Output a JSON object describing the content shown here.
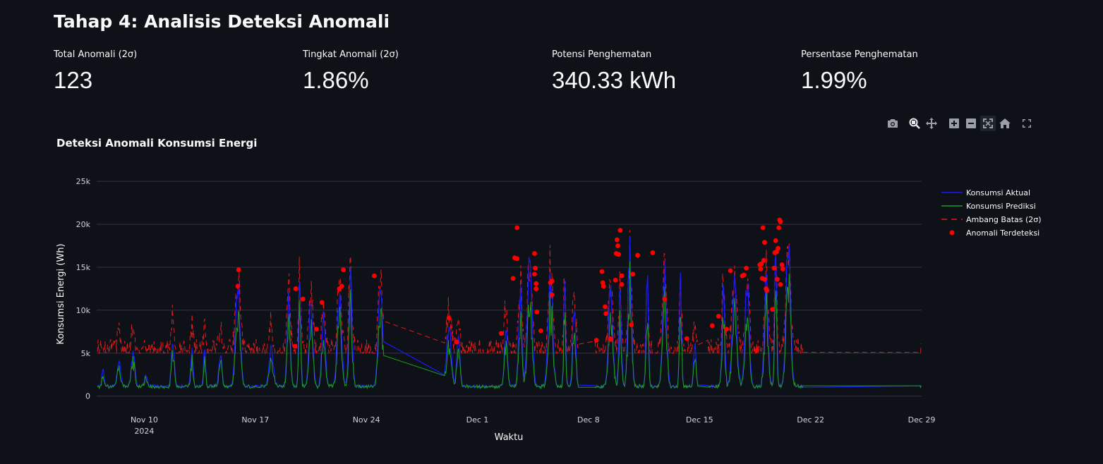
{
  "page": {
    "title": "Tahap 4: Analisis Deteksi Anomali"
  },
  "metrics": [
    {
      "label": "Total Anomali (2σ)",
      "value": "123"
    },
    {
      "label": "Tingkat Anomali (2σ)",
      "value": "1.86%"
    },
    {
      "label": "Potensi Penghematan",
      "value": "340.33 kWh"
    },
    {
      "label": "Persentase Penghematan",
      "value": "1.99%"
    }
  ],
  "modebar": {
    "buttons": [
      {
        "name": "camera-icon",
        "title": "Download plot as a png"
      },
      {
        "name": "zoom-icon",
        "title": "Zoom"
      },
      {
        "name": "pan-icon",
        "title": "Pan"
      },
      {
        "name": "zoom-in-icon",
        "title": "Zoom in"
      },
      {
        "name": "zoom-out-icon",
        "title": "Zoom out"
      },
      {
        "name": "autoscale-icon",
        "title": "Autoscale"
      },
      {
        "name": "home-icon",
        "title": "Reset axes"
      },
      {
        "name": "fullscreen-icon",
        "title": "Fullscreen"
      }
    ]
  },
  "colors": {
    "background": "#0e1117",
    "actual": "#1a1aff",
    "predicted": "#1f9c1f",
    "threshold": "#e31a1a",
    "anomaly": "#ff0000",
    "grid": "#31353f"
  },
  "chart_data": {
    "type": "line",
    "title": "Deteksi Anomali Konsumsi Energi",
    "xlabel": "Waktu",
    "ylabel": "Konsumsi Energi (Wh)",
    "ylim": [
      -1500,
      26000
    ],
    "y_ticks": [
      {
        "value": 0,
        "label": "0"
      },
      {
        "value": 5000,
        "label": "5k"
      },
      {
        "value": 10000,
        "label": "10k"
      },
      {
        "value": 15000,
        "label": "15k"
      },
      {
        "value": 20000,
        "label": "20k"
      },
      {
        "value": 25000,
        "label": "25k"
      }
    ],
    "x_ticks": [
      {
        "day": 9.5,
        "label": "Nov 10",
        "sublabel": "2024"
      },
      {
        "day": 16.5,
        "label": "Nov 17",
        "sublabel": ""
      },
      {
        "day": 23.5,
        "label": "Nov 24",
        "sublabel": ""
      },
      {
        "day": 30.5,
        "label": "Dec 1",
        "sublabel": ""
      },
      {
        "day": 37.5,
        "label": "Dec 8",
        "sublabel": ""
      },
      {
        "day": 44.5,
        "label": "Dec 15",
        "sublabel": ""
      },
      {
        "day": 51.5,
        "label": "Dec 22",
        "sublabel": ""
      },
      {
        "day": 58.5,
        "label": "Dec 29",
        "sublabel": ""
      }
    ],
    "xlim": [
      6.5,
      58.5
    ],
    "grid": true,
    "legend_position": "top-right",
    "series": [
      {
        "name": "Konsumsi Aktual",
        "style": "solid",
        "peaks": [
          {
            "day": 6.9,
            "value": 3200
          },
          {
            "day": 7.9,
            "value": 4500
          },
          {
            "day": 8.8,
            "value": 5500
          },
          {
            "day": 9.6,
            "value": 2500
          },
          {
            "day": 11.3,
            "value": 6500
          },
          {
            "day": 12.5,
            "value": 5500
          },
          {
            "day": 13.3,
            "value": 5800
          },
          {
            "day": 14.3,
            "value": 5200
          },
          {
            "day": 15.4,
            "value": 14500
          },
          {
            "day": 17.5,
            "value": 6000
          },
          {
            "day": 18.6,
            "value": 12500
          },
          {
            "day": 19.3,
            "value": 14500
          },
          {
            "day": 20.0,
            "value": 12000
          },
          {
            "day": 20.8,
            "value": 10500
          },
          {
            "day": 21.8,
            "value": 12500
          },
          {
            "day": 22.5,
            "value": 15000
          },
          {
            "day": 24.4,
            "value": 14000
          },
          {
            "day": 28.7,
            "value": 9000
          },
          {
            "day": 29.3,
            "value": 8500
          },
          {
            "day": 32.3,
            "value": 9000
          },
          {
            "day": 33.2,
            "value": 13500
          },
          {
            "day": 33.8,
            "value": 19500
          },
          {
            "day": 35.1,
            "value": 16000
          },
          {
            "day": 36.0,
            "value": 13500
          },
          {
            "day": 36.6,
            "value": 11000
          },
          {
            "day": 38.9,
            "value": 14500
          },
          {
            "day": 39.5,
            "value": 13500
          },
          {
            "day": 40.1,
            "value": 19500
          },
          {
            "day": 41.2,
            "value": 16500
          },
          {
            "day": 42.3,
            "value": 16500
          },
          {
            "day": 43.3,
            "value": 15000
          },
          {
            "day": 44.2,
            "value": 7000
          },
          {
            "day": 46.0,
            "value": 13000
          },
          {
            "day": 46.7,
            "value": 14500
          },
          {
            "day": 47.5,
            "value": 14000
          },
          {
            "day": 48.7,
            "value": 15000
          },
          {
            "day": 49.3,
            "value": 19500
          },
          {
            "day": 50.1,
            "value": 20500
          }
        ]
      },
      {
        "name": "Konsumsi Prediksi",
        "style": "solid"
      },
      {
        "name": "Ambang Batas (2σ)",
        "style": "dash"
      },
      {
        "name": "Anomali Terdeteksi",
        "style": "markers",
        "points": [
          {
            "x": 15.45,
            "y": 14700
          },
          {
            "x": 15.4,
            "y": 12800
          },
          {
            "x": 19.05,
            "y": 12500
          },
          {
            "x": 19.0,
            "y": 5800
          },
          {
            "x": 19.5,
            "y": 11300
          },
          {
            "x": 20.35,
            "y": 7800
          },
          {
            "x": 20.7,
            "y": 10900
          },
          {
            "x": 21.8,
            "y": 12500
          },
          {
            "x": 21.95,
            "y": 12800
          },
          {
            "x": 22.05,
            "y": 14700
          },
          {
            "x": 24.0,
            "y": 14000
          },
          {
            "x": 28.7,
            "y": 9100
          },
          {
            "x": 29.2,
            "y": 6300
          },
          {
            "x": 32.0,
            "y": 7300
          },
          {
            "x": 32.75,
            "y": 13700
          },
          {
            "x": 32.85,
            "y": 16100
          },
          {
            "x": 33.0,
            "y": 16000
          },
          {
            "x": 33.0,
            "y": 19600
          },
          {
            "x": 34.1,
            "y": 16600
          },
          {
            "x": 34.1,
            "y": 14200
          },
          {
            "x": 34.15,
            "y": 14900
          },
          {
            "x": 34.2,
            "y": 13100
          },
          {
            "x": 34.2,
            "y": 12500
          },
          {
            "x": 34.25,
            "y": 9800
          },
          {
            "x": 34.5,
            "y": 7600
          },
          {
            "x": 35.1,
            "y": 13200
          },
          {
            "x": 35.2,
            "y": 13400
          },
          {
            "x": 35.2,
            "y": 11800
          },
          {
            "x": 38.0,
            "y": 6500
          },
          {
            "x": 38.35,
            "y": 14500
          },
          {
            "x": 38.4,
            "y": 13200
          },
          {
            "x": 38.45,
            "y": 12800
          },
          {
            "x": 38.55,
            "y": 10400
          },
          {
            "x": 38.6,
            "y": 9600
          },
          {
            "x": 38.9,
            "y": 6600
          },
          {
            "x": 38.9,
            "y": 6700
          },
          {
            "x": 39.2,
            "y": 13500
          },
          {
            "x": 39.25,
            "y": 16600
          },
          {
            "x": 39.3,
            "y": 18200
          },
          {
            "x": 39.35,
            "y": 17500
          },
          {
            "x": 39.4,
            "y": 16500
          },
          {
            "x": 39.5,
            "y": 19300
          },
          {
            "x": 39.6,
            "y": 14000
          },
          {
            "x": 39.6,
            "y": 13000
          },
          {
            "x": 40.2,
            "y": 8300
          },
          {
            "x": 40.3,
            "y": 14200
          },
          {
            "x": 40.6,
            "y": 16400
          },
          {
            "x": 41.55,
            "y": 16700
          },
          {
            "x": 42.3,
            "y": 11300
          },
          {
            "x": 43.7,
            "y": 6700
          },
          {
            "x": 45.3,
            "y": 8200
          },
          {
            "x": 45.7,
            "y": 9300
          },
          {
            "x": 46.2,
            "y": 7800
          },
          {
            "x": 46.45,
            "y": 14600
          },
          {
            "x": 47.2,
            "y": 14000
          },
          {
            "x": 47.3,
            "y": 14100
          },
          {
            "x": 47.45,
            "y": 14900
          },
          {
            "x": 48.1,
            "y": 5300
          },
          {
            "x": 48.3,
            "y": 15300
          },
          {
            "x": 48.35,
            "y": 14800
          },
          {
            "x": 48.4,
            "y": 15400
          },
          {
            "x": 48.45,
            "y": 13700
          },
          {
            "x": 48.5,
            "y": 19600
          },
          {
            "x": 48.55,
            "y": 15800
          },
          {
            "x": 48.6,
            "y": 13600
          },
          {
            "x": 48.6,
            "y": 17900
          },
          {
            "x": 48.7,
            "y": 12500
          },
          {
            "x": 48.75,
            "y": 12300
          },
          {
            "x": 49.1,
            "y": 10100
          },
          {
            "x": 49.2,
            "y": 14900
          },
          {
            "x": 49.25,
            "y": 16700
          },
          {
            "x": 49.3,
            "y": 18100
          },
          {
            "x": 49.35,
            "y": 16800
          },
          {
            "x": 49.4,
            "y": 13600
          },
          {
            "x": 49.45,
            "y": 17200
          },
          {
            "x": 49.5,
            "y": 19600
          },
          {
            "x": 49.55,
            "y": 20500
          },
          {
            "x": 49.6,
            "y": 20300
          },
          {
            "x": 49.6,
            "y": 13000
          },
          {
            "x": 49.7,
            "y": 15300
          },
          {
            "x": 49.75,
            "y": 14800
          }
        ]
      }
    ]
  }
}
